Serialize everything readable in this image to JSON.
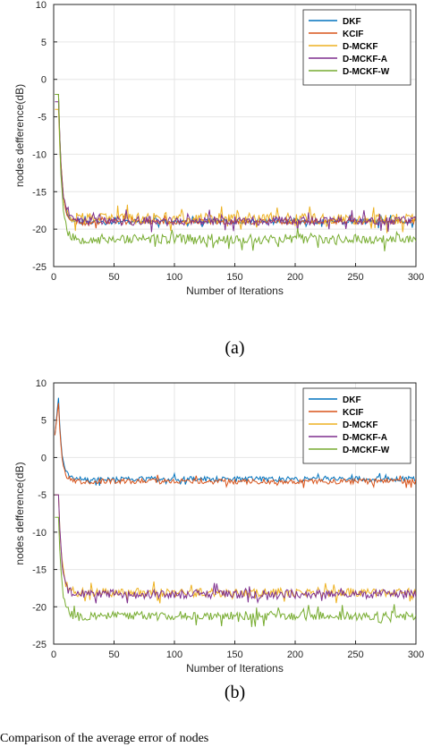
{
  "caption": "Comparison of the average error of nodes",
  "chart_data": [
    {
      "type": "line",
      "panel_label": "(a)",
      "xlabel": "Number of Iterations",
      "ylabel": "nodes defference(dB)",
      "xlim": [
        0,
        300
      ],
      "ylim": [
        -25,
        10
      ],
      "xticks": [
        0,
        50,
        100,
        150,
        200,
        250,
        300
      ],
      "yticks": [
        -25,
        -20,
        -15,
        -10,
        -5,
        0,
        5,
        10
      ],
      "grid": true,
      "legend_position": "top-right",
      "series": [
        {
          "name": "DKF",
          "color": "#0072BD",
          "start": -2,
          "peak": -2,
          "plateau": -19.0,
          "noise": 0.35,
          "seed": 11
        },
        {
          "name": "KCIF",
          "color": "#D95319",
          "start": -2,
          "peak": -2,
          "plateau": -19.0,
          "noise": 0.35,
          "seed": 23
        },
        {
          "name": "D-MCKF",
          "color": "#EDB120",
          "start": -4,
          "peak": -4,
          "plateau": -18.6,
          "noise": 0.75,
          "seed": 37
        },
        {
          "name": "D-MCKF-A",
          "color": "#7E2F8E",
          "start": -3,
          "peak": -3,
          "plateau": -18.9,
          "noise": 0.6,
          "seed": 41
        },
        {
          "name": "D-MCKF-W",
          "color": "#77AC30",
          "start": -2,
          "peak": -2,
          "plateau": -21.3,
          "noise": 0.65,
          "seed": 53
        }
      ]
    },
    {
      "type": "line",
      "panel_label": "(b)",
      "xlabel": "Number of Iterations",
      "ylabel": "nodes defference(dB)",
      "xlim": [
        0,
        300
      ],
      "ylim": [
        -25,
        10
      ],
      "xticks": [
        0,
        50,
        100,
        150,
        200,
        250,
        300
      ],
      "yticks": [
        -25,
        -20,
        -15,
        -10,
        -5,
        0,
        5,
        10
      ],
      "grid": true,
      "legend_position": "top-right",
      "series": [
        {
          "name": "DKF",
          "color": "#0072BD",
          "start": 3,
          "peak": 8,
          "plateau": -2.9,
          "noise": 0.35,
          "seed": 61
        },
        {
          "name": "KCIF",
          "color": "#D95319",
          "start": 3,
          "peak": 7.3,
          "plateau": -3.2,
          "noise": 0.35,
          "seed": 67
        },
        {
          "name": "D-MCKF",
          "color": "#EDB120",
          "start": -5,
          "peak": -5,
          "plateau": -18.1,
          "noise": 0.6,
          "seed": 71
        },
        {
          "name": "D-MCKF-A",
          "color": "#7E2F8E",
          "start": -5,
          "peak": -5,
          "plateau": -18.3,
          "noise": 0.6,
          "seed": 79
        },
        {
          "name": "D-MCKF-W",
          "color": "#77AC30",
          "start": -8,
          "peak": -8,
          "plateau": -21.2,
          "noise": 0.6,
          "seed": 83
        }
      ]
    }
  ]
}
